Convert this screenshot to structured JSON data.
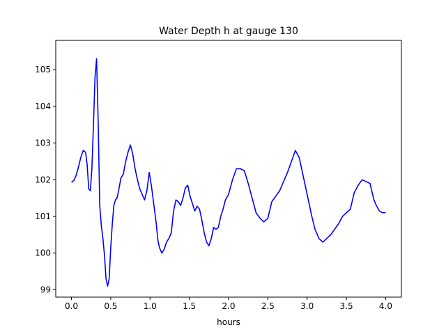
{
  "chart_data": {
    "type": "line",
    "title": "Water Depth h at gauge 130",
    "xlabel": "hours",
    "ylabel": "",
    "xlim": [
      -0.2,
      4.2
    ],
    "ylim": [
      98.8,
      105.8
    ],
    "xticks": [
      0.0,
      0.5,
      1.0,
      1.5,
      2.0,
      2.5,
      3.0,
      3.5,
      4.0
    ],
    "xtick_labels": [
      "0.0",
      "0.5",
      "1.0",
      "1.5",
      "2.0",
      "2.5",
      "3.0",
      "3.5",
      "4.0"
    ],
    "yticks": [
      99,
      100,
      101,
      102,
      103,
      104,
      105
    ],
    "ytick_labels": [
      "99",
      "100",
      "101",
      "102",
      "103",
      "104",
      "105"
    ],
    "grid": false,
    "series": [
      {
        "color": "#0000ff",
        "x": [
          0.0,
          0.03,
          0.06,
          0.09,
          0.12,
          0.15,
          0.18,
          0.2,
          0.22,
          0.24,
          0.26,
          0.28,
          0.3,
          0.32,
          0.34,
          0.36,
          0.38,
          0.4,
          0.42,
          0.44,
          0.46,
          0.48,
          0.5,
          0.52,
          0.54,
          0.56,
          0.58,
          0.6,
          0.63,
          0.66,
          0.69,
          0.72,
          0.75,
          0.78,
          0.81,
          0.84,
          0.87,
          0.9,
          0.93,
          0.96,
          0.99,
          1.02,
          1.05,
          1.08,
          1.1,
          1.12,
          1.15,
          1.18,
          1.21,
          1.24,
          1.27,
          1.3,
          1.33,
          1.36,
          1.39,
          1.42,
          1.45,
          1.48,
          1.51,
          1.54,
          1.57,
          1.6,
          1.63,
          1.66,
          1.69,
          1.72,
          1.75,
          1.78,
          1.81,
          1.84,
          1.87,
          1.9,
          1.93,
          1.96,
          2.0,
          2.05,
          2.1,
          2.15,
          2.2,
          2.25,
          2.3,
          2.35,
          2.4,
          2.45,
          2.5,
          2.55,
          2.6,
          2.65,
          2.7,
          2.75,
          2.8,
          2.85,
          2.9,
          2.95,
          3.0,
          3.03,
          3.06,
          3.1,
          3.15,
          3.2,
          3.25,
          3.3,
          3.35,
          3.4,
          3.45,
          3.5,
          3.55,
          3.6,
          3.65,
          3.7,
          3.75,
          3.8,
          3.85,
          3.88,
          3.92,
          3.96,
          4.0
        ],
        "y": [
          101.93,
          101.98,
          102.12,
          102.35,
          102.62,
          102.8,
          102.75,
          102.4,
          101.75,
          101.7,
          102.3,
          103.5,
          104.8,
          105.3,
          103.6,
          101.3,
          100.75,
          100.4,
          99.95,
          99.3,
          99.1,
          99.3,
          100.15,
          100.8,
          101.3,
          101.45,
          101.5,
          101.7,
          102.05,
          102.15,
          102.5,
          102.75,
          102.95,
          102.7,
          102.3,
          102.0,
          101.75,
          101.6,
          101.45,
          101.7,
          102.2,
          101.8,
          101.3,
          100.8,
          100.35,
          100.15,
          100.0,
          100.1,
          100.3,
          100.4,
          100.55,
          101.15,
          101.45,
          101.4,
          101.3,
          101.5,
          101.78,
          101.85,
          101.55,
          101.35,
          101.15,
          101.28,
          101.2,
          100.9,
          100.55,
          100.3,
          100.2,
          100.4,
          100.7,
          100.65,
          100.7,
          101.0,
          101.2,
          101.45,
          101.6,
          102.0,
          102.3,
          102.3,
          102.25,
          101.9,
          101.5,
          101.1,
          100.95,
          100.85,
          100.95,
          101.4,
          101.55,
          101.7,
          101.95,
          102.2,
          102.5,
          102.8,
          102.6,
          102.1,
          101.6,
          101.3,
          101.0,
          100.65,
          100.4,
          100.3,
          100.4,
          100.5,
          100.65,
          100.8,
          101.0,
          101.1,
          101.2,
          101.65,
          101.85,
          102.0,
          101.95,
          101.9,
          101.45,
          101.3,
          101.15,
          101.1,
          101.1
        ]
      }
    ]
  }
}
